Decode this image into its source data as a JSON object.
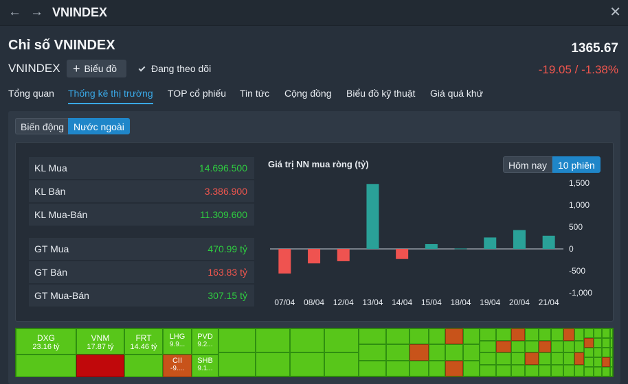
{
  "window": {
    "title": "VNINDEX",
    "back": "←",
    "forward": "→",
    "close": "✕"
  },
  "header": {
    "title": "Chỉ số VNINDEX",
    "price": "1365.67",
    "symbol": "VNINDEX",
    "chart_button": "Biểu đồ",
    "follow": "Đang theo dõi",
    "change": "-19.05 / -1.38%"
  },
  "tabs": [
    "Tổng quan",
    "Thống kê thị trường",
    "TOP cổ phiếu",
    "Tin tức",
    "Cộng đồng",
    "Biểu đồ kỹ thuật",
    "Giá quá khứ"
  ],
  "segments": [
    "Biến động",
    "Nước ngoài"
  ],
  "stats": [
    {
      "label": "KL Mua",
      "value": "14.696.500",
      "color": "#2ecc40"
    },
    {
      "label": "KL Bán",
      "value": "3.386.900",
      "color": "#f0564e"
    },
    {
      "label": "KL Mua-Bán",
      "value": "11.309.600",
      "color": "#2ecc40"
    },
    {
      "label": "GT Mua",
      "value": "470.99 tỷ",
      "color": "#2ecc40"
    },
    {
      "label": "GT Bán",
      "value": "163.83 tỷ",
      "color": "#f0564e"
    },
    {
      "label": "GT Mua-Bán",
      "value": "307.15 tỷ",
      "color": "#2ecc40"
    }
  ],
  "range_buttons": [
    "Hôm nay",
    "10 phiên"
  ],
  "chart_data": {
    "type": "bar",
    "title": "Giá trị NN mua ròng (tỷ)",
    "categories": [
      "07/04",
      "08/04",
      "12/04",
      "13/04",
      "14/04",
      "15/04",
      "18/04",
      "19/04",
      "20/04",
      "21/04"
    ],
    "values": [
      -560,
      -330,
      -280,
      1480,
      -230,
      110,
      10,
      260,
      430,
      300
    ],
    "yticks": [
      "1,500",
      "1,000",
      "500",
      "0",
      "-500",
      "-1,000"
    ],
    "ylim": [
      -1000,
      1500
    ],
    "positive_color": "#2aa198",
    "negative_color": "#ef5350"
  },
  "heatmap": [
    {
      "name": "DXG",
      "value": "23.16 tỷ",
      "color": "#58c61a"
    },
    {
      "name": "VNM",
      "value": "17.87 tỷ",
      "color": "#58c61a"
    },
    {
      "name": "FRT",
      "value": "14.46 tỷ",
      "color": "#58c61a"
    },
    {
      "name": "LHG",
      "value": "9.9...",
      "color": "#58c61a"
    },
    {
      "name": "PVD",
      "value": "9.2...",
      "color": "#58c61a"
    },
    {
      "name": "CII",
      "value": "-9....",
      "color": "#c8531a"
    },
    {
      "name": "SHB",
      "value": "9.1...",
      "color": "#58c61a"
    }
  ]
}
